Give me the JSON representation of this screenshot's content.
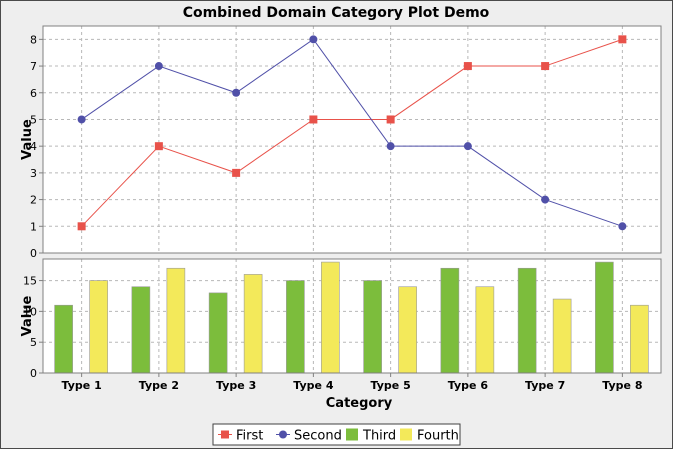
{
  "chart_data": {
    "title": "Combined Domain Category Plot Demo",
    "xlabel": "Category",
    "categories": [
      "Type 1",
      "Type 2",
      "Type 3",
      "Type 4",
      "Type 5",
      "Type 6",
      "Type 7",
      "Type 8"
    ],
    "plots": [
      {
        "type": "line",
        "ylabel": "Value",
        "ylim": [
          0,
          8.5
        ],
        "yticks": [
          0,
          1,
          2,
          3,
          4,
          5,
          6,
          7,
          8
        ],
        "grid": true,
        "series": [
          {
            "name": "First",
            "marker": "square",
            "color": "#e8524a",
            "values": [
              1,
              4,
              3,
              5,
              5,
              7,
              7,
              8
            ]
          },
          {
            "name": "Second",
            "marker": "circle",
            "color": "#5050a8",
            "values": [
              5,
              7,
              6,
              8,
              4,
              4,
              2,
              1
            ]
          }
        ]
      },
      {
        "type": "bar",
        "ylabel": "Value",
        "ylim": [
          0,
          18.5
        ],
        "yticks": [
          0,
          5,
          10,
          15
        ],
        "grid": true,
        "series": [
          {
            "name": "Third",
            "color": "#7cbd3c",
            "values": [
              11,
              14,
              13,
              15,
              15,
              17,
              17,
              18
            ]
          },
          {
            "name": "Fourth",
            "color": "#f3e95a",
            "values": [
              15,
              17,
              16,
              18,
              14,
              14,
              12,
              11
            ]
          }
        ]
      }
    ],
    "legend": {
      "position": "bottom",
      "items": [
        {
          "label": "First",
          "symbol": "line-square",
          "color": "#e8524a"
        },
        {
          "label": "Second",
          "symbol": "line-circle",
          "color": "#5050a8"
        },
        {
          "label": "Third",
          "symbol": "box",
          "color": "#7cbd3c"
        },
        {
          "label": "Fourth",
          "symbol": "box",
          "color": "#f3e95a"
        }
      ]
    }
  }
}
